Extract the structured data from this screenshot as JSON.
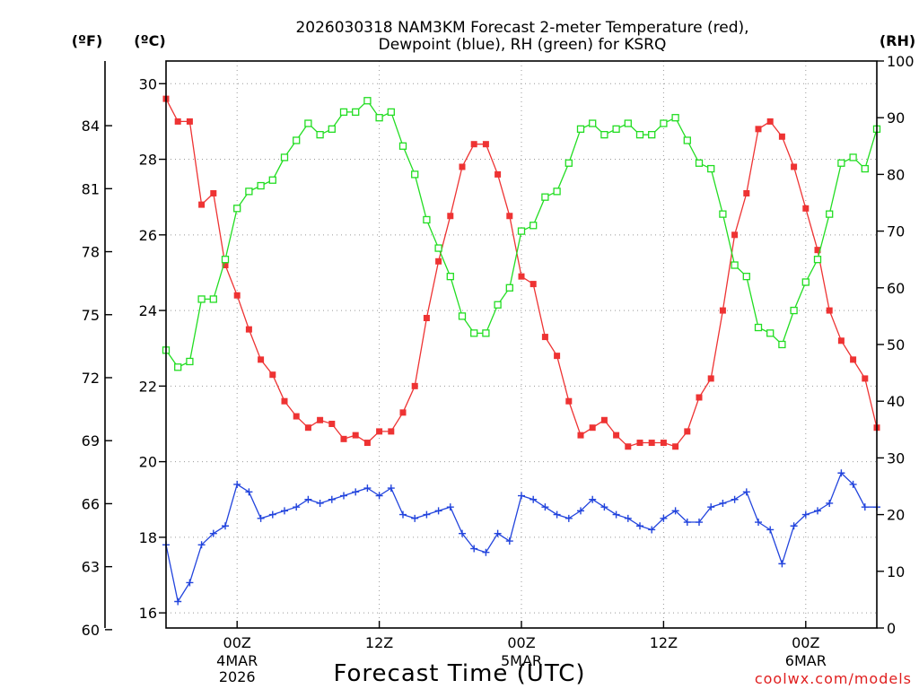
{
  "chart_data": {
    "type": "line",
    "title_line1": "2026030318 NAM3KM Forecast 2-meter Temperature (red),",
    "title_line2": "Dewpoint (blue), RH (green) for KSRQ",
    "xlabel": "Forecast Time (UTC)",
    "credit": "coolwx.com/models",
    "unit_f": "(ºF)",
    "unit_c": "(ºC)",
    "unit_rh": "(RH)",
    "x_hours": [
      0,
      1,
      2,
      3,
      4,
      5,
      6,
      7,
      8,
      9,
      10,
      11,
      12,
      13,
      14,
      15,
      16,
      17,
      18,
      19,
      20,
      21,
      22,
      23,
      24,
      25,
      26,
      27,
      28,
      29,
      30,
      31,
      32,
      33,
      34,
      35,
      36,
      37,
      38,
      39,
      40,
      41,
      42,
      43,
      44,
      45,
      46,
      47,
      48,
      49,
      50,
      51,
      52,
      53,
      54,
      55,
      56,
      57,
      58,
      59,
      60
    ],
    "xlim": [
      0,
      60
    ],
    "temp_c_ylim": [
      15.6,
      30.6
    ],
    "rh_ylim": [
      0,
      100
    ],
    "fahrenheit_ticks": [
      60,
      63,
      66,
      69,
      72,
      75,
      78,
      81,
      84
    ],
    "celsius_ticks": [
      16,
      18,
      20,
      22,
      24,
      26,
      28,
      30
    ],
    "rh_ticks": [
      0,
      10,
      20,
      30,
      40,
      50,
      60,
      70,
      80,
      90,
      100
    ],
    "x_ticks": [
      {
        "hour": 6,
        "label": "00Z",
        "sub1": "4MAR",
        "sub2": "2026"
      },
      {
        "hour": 18,
        "label": "12Z",
        "sub1": "",
        "sub2": ""
      },
      {
        "hour": 30,
        "label": "00Z",
        "sub1": "5MAR",
        "sub2": ""
      },
      {
        "hour": 42,
        "label": "12Z",
        "sub1": "",
        "sub2": ""
      },
      {
        "hour": 54,
        "label": "00Z",
        "sub1": "6MAR",
        "sub2": ""
      }
    ],
    "series": [
      {
        "name": "2-meter Temperature",
        "axis": "celsius",
        "color": "#ee3333",
        "marker": "filled-square",
        "values": [
          29.6,
          29.0,
          29.0,
          26.8,
          27.1,
          25.2,
          24.4,
          23.5,
          22.7,
          22.3,
          21.6,
          21.2,
          20.9,
          21.1,
          21.0,
          20.6,
          20.7,
          20.5,
          20.8,
          20.8,
          21.3,
          22.0,
          23.8,
          25.3,
          26.5,
          27.8,
          28.4,
          28.4,
          27.6,
          26.5,
          24.9,
          24.7,
          23.3,
          22.8,
          21.6,
          20.7,
          20.9,
          21.1,
          20.7,
          20.4,
          20.5,
          20.5,
          20.5,
          20.4,
          20.8,
          21.7,
          22.2,
          24.0,
          26.0,
          27.1,
          28.8,
          29.0,
          28.6,
          27.8,
          26.7,
          25.6,
          24.0,
          23.2,
          22.7,
          22.2,
          20.9
        ]
      },
      {
        "name": "Dewpoint",
        "axis": "celsius",
        "color": "#2244dd",
        "marker": "plus",
        "values": [
          17.8,
          16.3,
          16.8,
          17.8,
          18.1,
          18.3,
          19.4,
          19.2,
          18.5,
          18.6,
          18.7,
          18.8,
          19.0,
          18.9,
          19.0,
          19.1,
          19.2,
          19.3,
          19.1,
          19.3,
          18.6,
          18.5,
          18.6,
          18.7,
          18.8,
          18.1,
          17.7,
          17.6,
          18.1,
          17.9,
          19.1,
          19.0,
          18.8,
          18.6,
          18.5,
          18.7,
          19.0,
          18.8,
          18.6,
          18.5,
          18.3,
          18.2,
          18.5,
          18.7,
          18.4,
          18.4,
          18.8,
          18.9,
          19.0,
          19.2,
          18.4,
          18.2,
          17.3,
          18.3,
          18.6,
          18.7,
          18.9,
          19.7,
          19.4,
          18.8,
          18.8
        ]
      },
      {
        "name": "RH",
        "axis": "rh",
        "color": "#22dd22",
        "marker": "open-square",
        "values": [
          49,
          46,
          47,
          58,
          58,
          65,
          74,
          77,
          78,
          79,
          83,
          86,
          89,
          87,
          88,
          91,
          91,
          93,
          90,
          91,
          85,
          80,
          72,
          67,
          62,
          55,
          52,
          52,
          57,
          60,
          70,
          71,
          76,
          77,
          82,
          88,
          89,
          87,
          88,
          89,
          87,
          87,
          89,
          90,
          86,
          82,
          81,
          73,
          64,
          62,
          53,
          52,
          50,
          56,
          61,
          65,
          73,
          82,
          83,
          81,
          88
        ]
      }
    ]
  }
}
